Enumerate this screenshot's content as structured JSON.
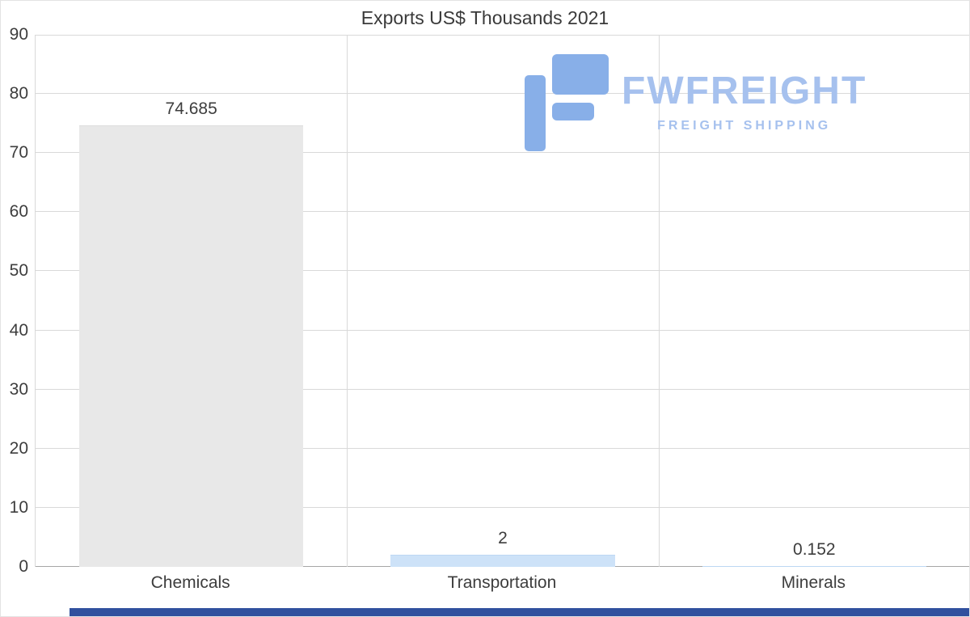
{
  "logo": {
    "name": "FWFREIGHT",
    "tagline": "FREIGHT SHIPPING",
    "text_color": "#a6c1ee",
    "icon_color": "#88afe8"
  },
  "footer": {
    "strip_color": "#30509e"
  },
  "chart_data": {
    "type": "bar",
    "title": "Exports US$ Thousands 2021",
    "categories": [
      "Chemicals",
      "Transportation",
      "Minerals"
    ],
    "values": [
      74.685,
      2,
      0.152
    ],
    "value_labels": [
      "74.685",
      "2",
      "0.152"
    ],
    "xlabel": "",
    "ylabel": "",
    "ylim": [
      0,
      90
    ],
    "yticks": [
      0,
      10,
      20,
      30,
      40,
      50,
      60,
      70,
      80,
      90
    ],
    "grid": true,
    "legend": false,
    "bar_width_fraction": 0.72,
    "bar_colors": [
      "#e8e8e8",
      "#cde2f8",
      "#cde2f8"
    ],
    "bar_border_colors": [
      "#dedede",
      "#bdd7f3",
      "#bdd7f3"
    ],
    "grid_color": "#d9d9d9",
    "baseline_color": "#a6a6a6"
  }
}
